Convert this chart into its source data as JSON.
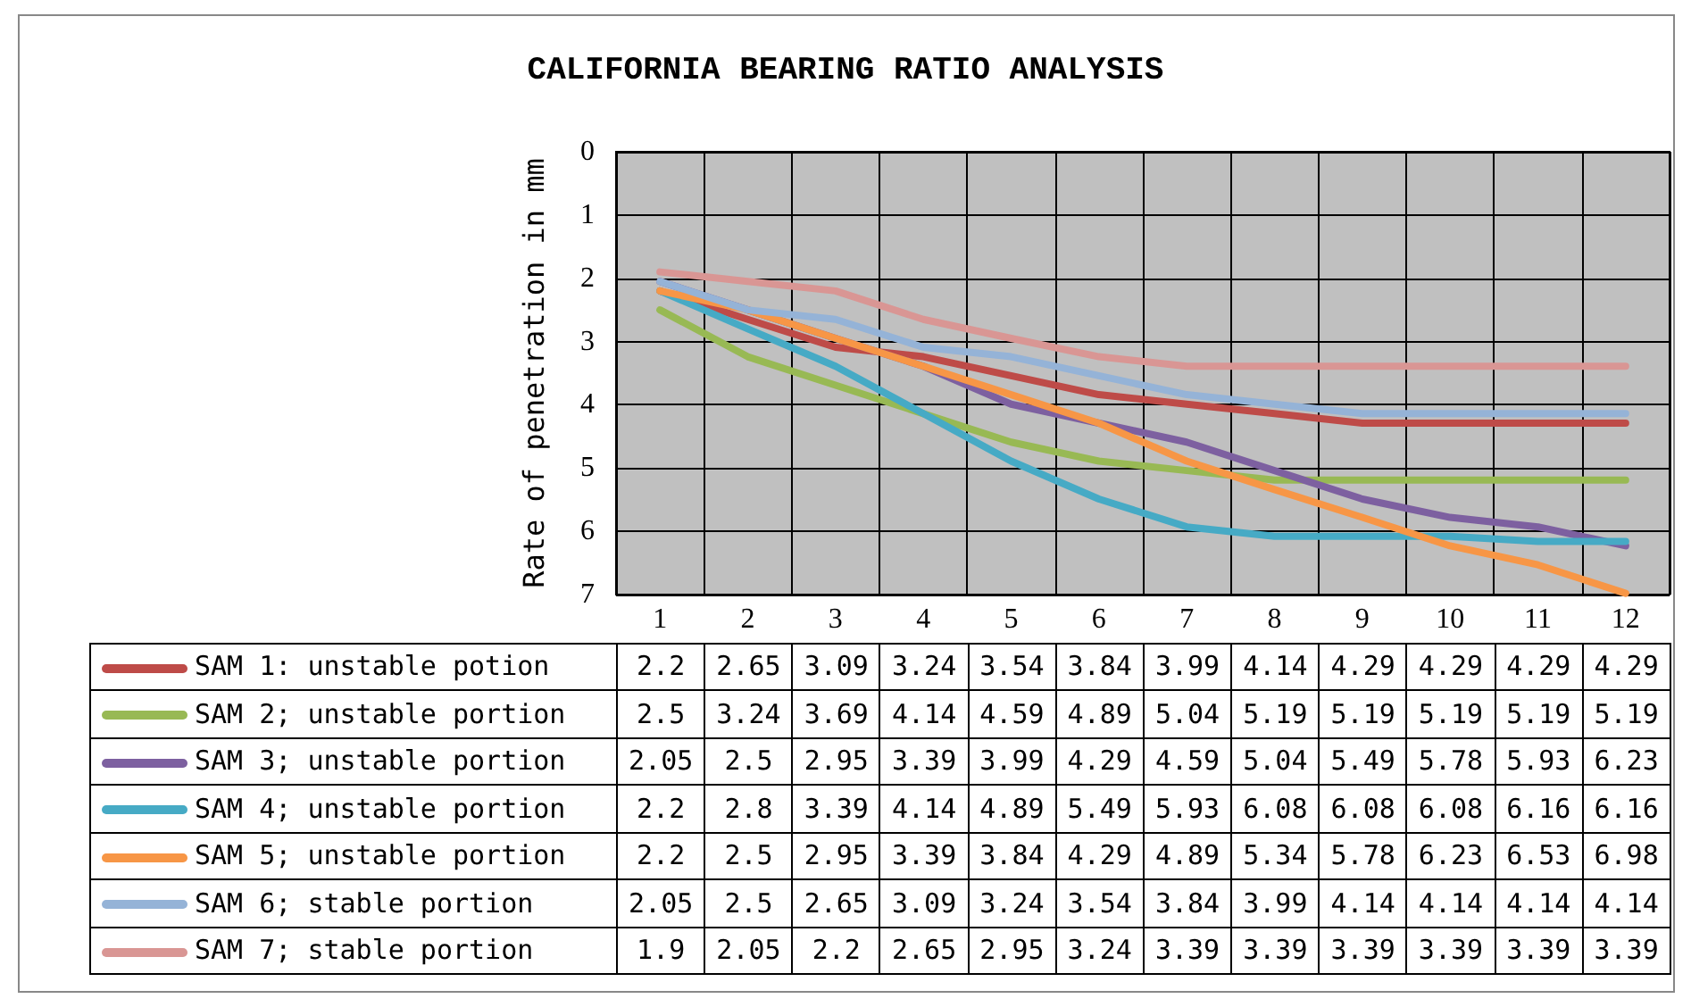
{
  "chart_data": {
    "type": "line",
    "title": "CALIFORNIA BEARING RATIO ANALYSIS",
    "ylabel": "Rate of penetration in mm",
    "categories": [
      "1",
      "2",
      "3",
      "4",
      "5",
      "6",
      "7",
      "8",
      "9",
      "10",
      "11",
      "12"
    ],
    "ylim": [
      7,
      0
    ],
    "yticks": [
      0,
      1,
      2,
      3,
      4,
      5,
      6,
      7
    ],
    "grid": true,
    "legend": "bottom left",
    "data_labels": true,
    "marker": "none",
    "line_style": "solid",
    "series": [
      {
        "name": "SAM 1: unstable potion",
        "color": "#be4b48",
        "values": [
          2.2,
          2.65,
          3.09,
          3.24,
          3.54,
          3.84,
          3.99,
          4.14,
          4.29,
          4.29,
          4.29,
          4.29
        ]
      },
      {
        "name": "SAM 2; unstable portion",
        "color": "#98b954",
        "values": [
          2.5,
          3.24,
          3.69,
          4.14,
          4.59,
          4.89,
          5.04,
          5.19,
          5.19,
          5.19,
          5.19,
          5.19
        ]
      },
      {
        "name": "SAM 3; unstable portion",
        "color": "#7d60a0",
        "values": [
          2.05,
          2.5,
          2.95,
          3.39,
          3.99,
          4.29,
          4.59,
          5.04,
          5.49,
          5.78,
          5.93,
          6.23
        ]
      },
      {
        "name": "SAM 4; unstable portion",
        "color": "#46aac5",
        "values": [
          2.2,
          2.8,
          3.39,
          4.14,
          4.89,
          5.49,
          5.93,
          6.08,
          6.08,
          6.08,
          6.16,
          6.16
        ]
      },
      {
        "name": "SAM 5; unstable portion",
        "color": "#f79646",
        "values": [
          2.2,
          2.5,
          2.95,
          3.39,
          3.84,
          4.29,
          4.89,
          5.34,
          5.78,
          6.23,
          6.53,
          6.98
        ]
      },
      {
        "name": "SAM 6; stable portion",
        "color": "#95b3d7",
        "values": [
          2.05,
          2.5,
          2.65,
          3.09,
          3.24,
          3.54,
          3.84,
          3.99,
          4.14,
          4.14,
          4.14,
          4.14
        ]
      },
      {
        "name": "SAM 7; stable portion",
        "color": "#d99694",
        "values": [
          1.9,
          2.05,
          2.2,
          2.65,
          2.95,
          3.24,
          3.39,
          3.39,
          3.39,
          3.39,
          3.39,
          3.39
        ]
      }
    ]
  }
}
